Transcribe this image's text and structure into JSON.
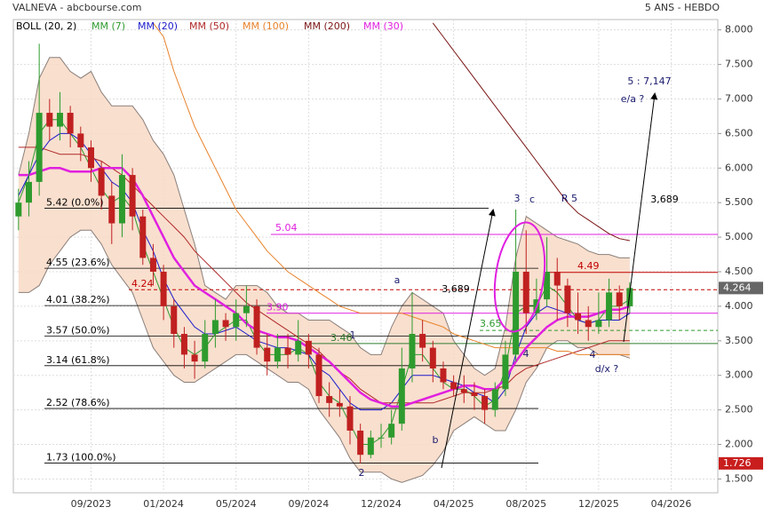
{
  "chart_data": {
    "type": "candlestick",
    "title": "VALNEVA - abcbourse.com",
    "subtitle": "5 ANS - HEBDO",
    "categories": [
      null,
      null,
      null,
      null,
      null,
      null,
      null,
      "09/2023",
      null,
      null,
      null,
      null,
      null,
      null,
      "01/2024",
      null,
      null,
      null,
      null,
      null,
      null,
      "05/2024",
      null,
      null,
      null,
      null,
      null,
      null,
      "09/2024",
      null,
      null,
      null,
      null,
      null,
      null,
      "12/2024",
      null,
      null,
      null,
      null,
      null,
      null,
      "04/2025",
      null,
      null,
      null,
      null,
      null,
      null,
      "08/2025",
      null,
      null,
      null,
      null,
      null,
      null,
      "12/2025",
      null,
      null,
      null,
      null,
      null,
      null,
      "04/2026",
      null,
      null,
      null,
      null
    ],
    "ylim": [
      1.3,
      8.15
    ],
    "yticks": [
      {
        "value": 8,
        "label": "8.000"
      },
      {
        "value": 7.5,
        "label": "7.500"
      },
      {
        "value": 7,
        "label": "7.000"
      },
      {
        "value": 6.5,
        "label": "6.500"
      },
      {
        "value": 6,
        "label": "6.000"
      },
      {
        "value": 5.5,
        "label": "5.500"
      },
      {
        "value": 5,
        "label": "5.000"
      },
      {
        "value": 4.5,
        "label": "4.500"
      },
      {
        "value": 4,
        "label": "4.000"
      },
      {
        "value": 3.5,
        "label": "3.500"
      },
      {
        "value": 3,
        "label": "3.000"
      },
      {
        "value": 2.5,
        "label": "2.500"
      },
      {
        "value": 2,
        "label": "2.000"
      },
      {
        "value": 1.5,
        "label": "1.500"
      }
    ],
    "grid": true,
    "up_color": "#2e9b2e",
    "down_color": "#c02020",
    "open": [
      5.3,
      5.5,
      5.8,
      6.8,
      6.6,
      6.8,
      6.5,
      6.3,
      6.0,
      5.6,
      5.2,
      5.9,
      5.3,
      4.7,
      4.5,
      4.0,
      3.6,
      3.3,
      3.2,
      3.6,
      3.8,
      3.7,
      3.9,
      4.0,
      3.4,
      3.2,
      3.4,
      3.3,
      3.5,
      3.3,
      2.7,
      2.6,
      2.55,
      2.2,
      1.85,
      2.1,
      2.1,
      2.3,
      3.1,
      3.6,
      3.4,
      3.1,
      2.9,
      2.8,
      2.75,
      2.7,
      2.5,
      2.8,
      3.3,
      4.5,
      3.9,
      4.1,
      4.5,
      4.3,
      3.9,
      3.8,
      3.7,
      3.8,
      4.2,
      4.0,
      null,
      null,
      null,
      null,
      null,
      null,
      null,
      null
    ],
    "high": [
      5.7,
      6.1,
      7.8,
      7.0,
      7.1,
      6.9,
      6.6,
      6.4,
      6.1,
      5.8,
      6.2,
      6.0,
      5.4,
      4.9,
      4.6,
      4.1,
      3.7,
      3.5,
      3.8,
      4.1,
      3.9,
      4.1,
      4.3,
      4.1,
      3.6,
      3.6,
      3.6,
      3.8,
      3.6,
      3.4,
      2.9,
      2.8,
      2.7,
      2.3,
      2.2,
      2.3,
      2.5,
      3.4,
      4.2,
      3.8,
      3.5,
      3.2,
      3.0,
      3.0,
      2.9,
      2.8,
      2.9,
      3.5,
      5.4,
      5.1,
      4.4,
      5.0,
      4.7,
      4.4,
      4.2,
      4.0,
      4.2,
      4.4,
      4.3,
      4.35,
      null,
      null,
      null,
      null,
      null,
      null,
      null,
      null
    ],
    "low": [
      5.1,
      5.3,
      5.6,
      6.4,
      6.4,
      6.3,
      6.1,
      5.8,
      5.4,
      4.9,
      5.0,
      5.1,
      4.6,
      4.3,
      3.8,
      3.4,
      3.1,
      2.95,
      3.1,
      3.4,
      3.5,
      3.5,
      3.7,
      3.3,
      3.0,
      3.1,
      3.1,
      3.2,
      3.1,
      2.6,
      2.4,
      2.4,
      2.0,
      1.726,
      1.8,
      1.95,
      2.0,
      2.2,
      2.9,
      3.2,
      2.9,
      2.8,
      2.7,
      2.6,
      2.5,
      2.3,
      2.4,
      2.7,
      3.2,
      3.6,
      3.8,
      4.0,
      3.8,
      3.7,
      3.6,
      3.5,
      3.6,
      3.7,
      3.8,
      3.9,
      null,
      null,
      null,
      null,
      null,
      null,
      null,
      null
    ],
    "close": [
      5.5,
      5.8,
      6.8,
      6.6,
      6.8,
      6.5,
      6.3,
      6.0,
      5.6,
      5.2,
      5.9,
      5.3,
      4.7,
      4.5,
      4.0,
      3.6,
      3.3,
      3.2,
      3.6,
      3.8,
      3.7,
      3.9,
      4.0,
      3.4,
      3.2,
      3.4,
      3.3,
      3.5,
      3.3,
      2.7,
      2.6,
      2.55,
      2.2,
      1.85,
      2.1,
      2.1,
      2.3,
      3.1,
      3.6,
      3.4,
      3.1,
      2.9,
      2.8,
      2.75,
      2.7,
      2.5,
      2.8,
      3.3,
      4.5,
      3.9,
      4.1,
      4.5,
      4.3,
      3.9,
      3.8,
      3.7,
      3.8,
      4.2,
      4.0,
      4.264,
      null,
      null,
      null,
      null,
      null,
      null,
      null,
      null
    ],
    "bollinger": {
      "name": "BOLL (20, 2)",
      "color": "#f8d9c6",
      "upper": [
        5.9,
        6.5,
        7.3,
        7.6,
        7.6,
        7.4,
        7.3,
        7.4,
        7.1,
        6.9,
        6.9,
        6.9,
        6.7,
        6.4,
        6.2,
        5.9,
        5.4,
        4.9,
        4.3,
        4.2,
        4.1,
        4.3,
        4.3,
        4.3,
        4.2,
        4.0,
        3.9,
        3.9,
        3.8,
        3.8,
        3.8,
        3.7,
        3.6,
        3.4,
        3.3,
        3.3,
        3.7,
        4.0,
        4.2,
        4.1,
        4.0,
        3.9,
        3.5,
        3.3,
        3.1,
        3.0,
        3.1,
        3.7,
        4.7,
        5.3,
        5.2,
        5.1,
        5.0,
        4.95,
        4.9,
        4.8,
        4.75,
        4.75,
        4.7,
        4.7,
        null,
        null,
        null,
        null,
        null,
        null,
        null,
        null
      ],
      "lower": [
        4.2,
        4.2,
        4.3,
        4.6,
        4.8,
        5.0,
        5.1,
        5.1,
        4.9,
        4.6,
        4.4,
        4.2,
        3.8,
        3.4,
        3.2,
        3.0,
        2.9,
        2.9,
        3.0,
        3.1,
        3.2,
        3.3,
        3.3,
        3.2,
        3.1,
        3.0,
        2.9,
        2.9,
        2.8,
        2.5,
        2.3,
        2.1,
        1.8,
        1.6,
        1.6,
        1.6,
        1.5,
        1.45,
        1.5,
        1.55,
        1.7,
        1.9,
        2.2,
        2.3,
        2.4,
        2.3,
        2.2,
        2.2,
        2.5,
        2.9,
        3.1,
        3.4,
        3.5,
        3.5,
        3.4,
        3.4,
        3.3,
        3.3,
        3.3,
        3.25,
        null,
        null,
        null,
        null,
        null,
        null,
        null,
        null
      ]
    },
    "series": [
      {
        "name": "MM (7)",
        "color": "#2e9b2e",
        "values": [
          5.5,
          5.9,
          6.5,
          6.7,
          6.7,
          6.5,
          6.3,
          6.0,
          5.7,
          5.5,
          5.6,
          5.4,
          4.9,
          4.5,
          4.1,
          3.7,
          3.4,
          3.3,
          3.4,
          3.6,
          3.7,
          3.8,
          3.8,
          3.5,
          3.3,
          3.3,
          3.3,
          3.4,
          3.3,
          2.9,
          2.7,
          2.6,
          2.3,
          2.0,
          2.0,
          2.1,
          2.3,
          2.8,
          3.3,
          3.3,
          3.1,
          2.9,
          2.8,
          2.8,
          2.7,
          2.55,
          2.65,
          3.1,
          3.9,
          4.0,
          4.0,
          4.3,
          4.2,
          4.0,
          3.8,
          3.75,
          3.8,
          4.0,
          4.0,
          4.1,
          null,
          null,
          null,
          null,
          null,
          null,
          null,
          null
        ]
      },
      {
        "name": "MM (20)",
        "color": "#1a1acc",
        "values": [
          5.6,
          5.9,
          6.2,
          6.4,
          6.5,
          6.5,
          6.4,
          6.2,
          6.0,
          5.8,
          5.7,
          5.5,
          5.1,
          4.8,
          4.4,
          4.1,
          3.9,
          3.7,
          3.6,
          3.6,
          3.65,
          3.7,
          3.6,
          3.5,
          3.45,
          3.4,
          3.4,
          3.35,
          3.3,
          3.1,
          3.0,
          2.8,
          2.6,
          2.5,
          2.5,
          2.5,
          2.6,
          2.8,
          3.0,
          3.0,
          3.0,
          2.95,
          2.9,
          2.85,
          2.75,
          2.7,
          2.6,
          2.8,
          3.3,
          3.7,
          3.9,
          4.0,
          3.95,
          3.9,
          3.8,
          3.75,
          3.8,
          3.8,
          3.8,
          3.9,
          null,
          null,
          null,
          null,
          null,
          null,
          null,
          null
        ]
      },
      {
        "name": "MM (50)",
        "color": "#b02828",
        "values": [
          6.3,
          6.3,
          6.3,
          6.25,
          6.2,
          6.2,
          6.2,
          6.15,
          6.1,
          6.0,
          5.9,
          5.75,
          5.6,
          5.45,
          5.3,
          5.15,
          5.0,
          4.8,
          4.65,
          4.5,
          4.35,
          4.2,
          4.05,
          3.95,
          3.85,
          3.75,
          3.65,
          3.55,
          3.45,
          3.35,
          3.2,
          3.05,
          2.95,
          2.8,
          2.7,
          2.6,
          2.6,
          2.6,
          2.6,
          2.6,
          2.6,
          2.65,
          2.7,
          2.75,
          2.75,
          2.75,
          2.8,
          2.85,
          3.0,
          3.1,
          3.15,
          3.2,
          3.25,
          3.3,
          3.35,
          3.4,
          3.45,
          3.5,
          3.5,
          3.5,
          null,
          null,
          null,
          null,
          null,
          null,
          null,
          null
        ]
      },
      {
        "name": "MM (100)",
        "color": "#e8822a",
        "values": [
          null,
          null,
          null,
          null,
          null,
          null,
          null,
          null,
          null,
          null,
          null,
          null,
          null,
          8.1,
          7.9,
          7.4,
          7.0,
          6.6,
          6.3,
          6.0,
          5.7,
          5.4,
          5.2,
          5.0,
          4.8,
          4.65,
          4.5,
          4.4,
          4.3,
          4.2,
          4.1,
          4.0,
          3.95,
          3.9,
          3.9,
          3.9,
          3.9,
          3.9,
          3.85,
          3.8,
          3.75,
          3.7,
          3.6,
          3.55,
          3.5,
          3.45,
          3.4,
          3.4,
          3.4,
          3.4,
          3.4,
          3.4,
          3.35,
          3.35,
          3.3,
          3.3,
          3.3,
          3.3,
          3.3,
          3.3,
          null,
          null,
          null,
          null,
          null,
          null,
          null,
          null
        ]
      },
      {
        "name": "MM (200)",
        "color": "#7a1414",
        "values": [
          null,
          null,
          null,
          null,
          null,
          null,
          null,
          null,
          null,
          null,
          null,
          null,
          null,
          null,
          null,
          null,
          null,
          null,
          null,
          null,
          null,
          null,
          null,
          null,
          null,
          null,
          null,
          null,
          null,
          null,
          null,
          null,
          null,
          null,
          null,
          null,
          null,
          null,
          null,
          null,
          8.1,
          7.9,
          7.7,
          7.5,
          7.3,
          7.1,
          6.9,
          6.7,
          6.5,
          6.3,
          6.1,
          5.9,
          5.7,
          5.5,
          5.35,
          5.25,
          5.15,
          5.05,
          4.98,
          4.95,
          null,
          null,
          null,
          null,
          null,
          null,
          null,
          null
        ]
      },
      {
        "name": "MM (30)",
        "color": "#e020e0",
        "values": [
          5.9,
          5.9,
          5.95,
          6.0,
          6.0,
          5.95,
          5.95,
          5.95,
          6.0,
          6.0,
          6.0,
          5.85,
          5.6,
          5.3,
          5.0,
          4.7,
          4.5,
          4.3,
          4.2,
          4.1,
          4.0,
          3.9,
          3.75,
          3.65,
          3.6,
          3.55,
          3.55,
          3.5,
          3.4,
          3.3,
          3.2,
          3.05,
          2.9,
          2.75,
          2.65,
          2.6,
          2.55,
          2.55,
          2.6,
          2.65,
          2.7,
          2.75,
          2.8,
          2.85,
          2.85,
          2.8,
          2.8,
          2.95,
          3.2,
          3.4,
          3.55,
          3.7,
          3.8,
          3.85,
          3.85,
          3.85,
          3.9,
          3.95,
          3.95,
          4.0,
          null,
          null,
          null,
          null,
          null,
          null,
          null,
          null
        ]
      }
    ],
    "fib": [
      {
        "value": 5.42,
        "label": "5.42 (0.0%)"
      },
      {
        "value": 4.55,
        "label": "4.55 (23.6%)"
      },
      {
        "value": 4.01,
        "label": "4.01  (38.2%)"
      },
      {
        "value": 3.57,
        "label": "3.57  (50.0%)"
      },
      {
        "value": 3.14,
        "label": "3.14  (61.8%)"
      },
      {
        "value": 2.52,
        "label": "2.52  (78.6%)"
      },
      {
        "value": 1.73,
        "label": "1.73  (100.0%)"
      }
    ],
    "levels": [
      {
        "value": 5.04,
        "color": "#e020e0"
      },
      {
        "value": 3.9,
        "label": "3.90",
        "color": "#e020e0"
      },
      {
        "value": 4.49,
        "color": "#c00000"
      },
      {
        "value": 4.24,
        "color": "#c00000",
        "dashed": true
      },
      {
        "value": 3.65,
        "color": "#2e9b2e",
        "dashed": true
      },
      {
        "value": 3.46,
        "color": "#2e7d2e"
      }
    ],
    "annotations": [
      "3",
      "c",
      "R 5",
      "3,689",
      "a",
      "3,689",
      "b",
      "1",
      "2",
      "4",
      "4",
      "d/x ?",
      "5 : 7,147",
      "e/a ?"
    ],
    "last_price": 4.264,
    "low_price": 1.726
  }
}
